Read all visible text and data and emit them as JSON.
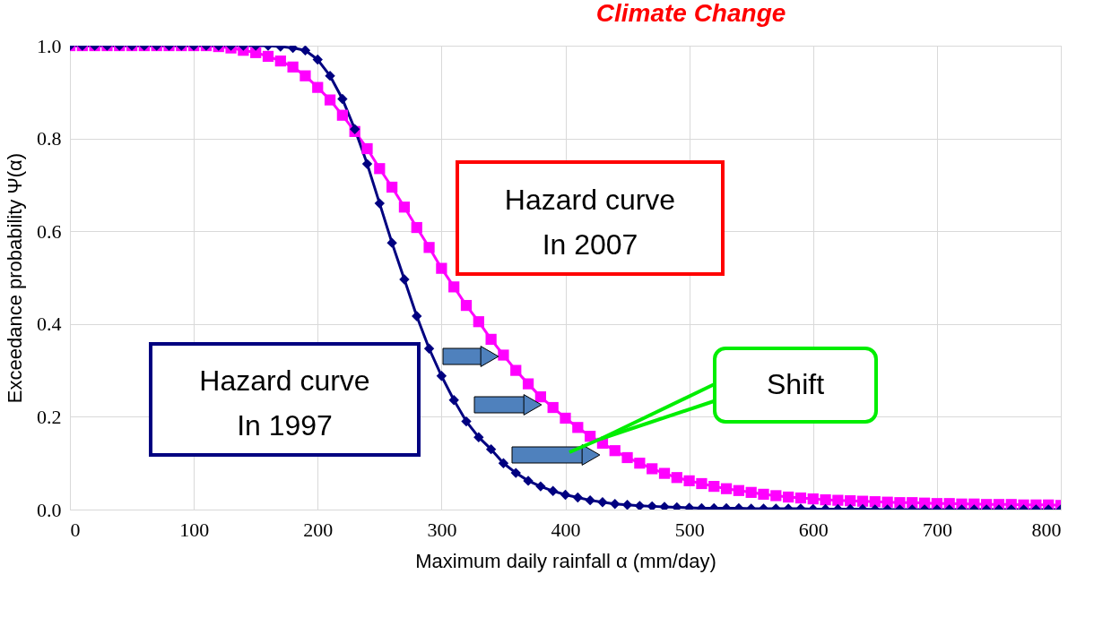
{
  "chart_data": {
    "type": "line",
    "title": "Climate Change",
    "xlabel": "Maximum daily rainfall α  (mm/day)",
    "ylabel": "Exceedance  probability Ψ(α)",
    "x": [
      0,
      10,
      20,
      30,
      40,
      50,
      60,
      70,
      80,
      90,
      100,
      110,
      120,
      130,
      140,
      150,
      160,
      170,
      180,
      190,
      200,
      210,
      220,
      230,
      240,
      250,
      260,
      270,
      280,
      290,
      300,
      310,
      320,
      330,
      340,
      350,
      360,
      370,
      380,
      390,
      400,
      410,
      420,
      430,
      440,
      450,
      460,
      470,
      480,
      490,
      500,
      510,
      520,
      530,
      540,
      550,
      560,
      570,
      580,
      590,
      600,
      610,
      620,
      630,
      640,
      650,
      660,
      670,
      680,
      690,
      700,
      710,
      720,
      730,
      740,
      750,
      760,
      770,
      780,
      790,
      800
    ],
    "series": [
      {
        "name": "Hazard curve\nIn 1997",
        "color": "#000080",
        "marker": "diamond",
        "values": [
          1.0,
          1.0,
          1.0,
          1.0,
          1.0,
          1.0,
          1.0,
          1.0,
          1.0,
          1.0,
          1.0,
          1.0,
          1.0,
          1.0,
          1.0,
          1.0,
          1.0,
          0.998,
          0.995,
          0.99,
          0.97,
          0.935,
          0.885,
          0.82,
          0.745,
          0.66,
          0.575,
          0.496,
          0.417,
          0.347,
          0.288,
          0.236,
          0.19,
          0.156,
          0.13,
          0.1,
          0.079,
          0.062,
          0.05,
          0.04,
          0.032,
          0.026,
          0.02,
          0.016,
          0.012,
          0.01,
          0.008,
          0.007,
          0.006,
          0.005,
          0.004,
          0.003,
          0.003,
          0.003,
          0.003,
          0.002,
          0.002,
          0.002,
          0.002,
          0.002,
          0.001,
          0.001,
          0.001,
          0.001,
          0.001,
          0,
          0,
          0,
          0,
          0,
          0,
          0,
          0,
          0,
          0,
          0,
          0,
          0,
          0,
          0,
          0
        ]
      },
      {
        "name": "Hazard curve\nIn 2007",
        "color": "#ff00ff",
        "marker": "square",
        "values": [
          1.0,
          1.0,
          1.0,
          1.0,
          1.0,
          1.0,
          1.0,
          1.0,
          1.0,
          1.0,
          1.0,
          1.0,
          0.998,
          0.995,
          0.99,
          0.985,
          0.977,
          0.967,
          0.954,
          0.935,
          0.91,
          0.883,
          0.85,
          0.815,
          0.778,
          0.735,
          0.695,
          0.652,
          0.608,
          0.565,
          0.52,
          0.48,
          0.44,
          0.405,
          0.367,
          0.333,
          0.3,
          0.271,
          0.243,
          0.22,
          0.197,
          0.177,
          0.158,
          0.143,
          0.127,
          0.112,
          0.1,
          0.088,
          0.078,
          0.069,
          0.062,
          0.056,
          0.05,
          0.045,
          0.041,
          0.037,
          0.033,
          0.03,
          0.027,
          0.025,
          0.023,
          0.021,
          0.02,
          0.019,
          0.018,
          0.017,
          0.016,
          0.015,
          0.015,
          0.014,
          0.013,
          0.013,
          0.012,
          0.012,
          0.011,
          0.011,
          0.011,
          0.01,
          0.01,
          0.01,
          0.009
        ]
      }
    ],
    "annotations": [
      "Shift"
    ],
    "xlim": [
      0,
      800
    ],
    "xticks": [
      0,
      100,
      200,
      300,
      400,
      500,
      600,
      700,
      800
    ],
    "ylim": [
      0,
      1.0
    ],
    "yticks": [
      {
        "value": 0,
        "label": "0.0"
      },
      {
        "value": 0.2,
        "label": "0.2"
      },
      {
        "value": 0.4,
        "label": "0.4"
      },
      {
        "value": 0.6,
        "label": "0.6"
      },
      {
        "value": 0.8,
        "label": "0.8"
      },
      {
        "value": 1.0,
        "label": "1.0"
      }
    ],
    "grid": true,
    "line_style": "solid"
  }
}
